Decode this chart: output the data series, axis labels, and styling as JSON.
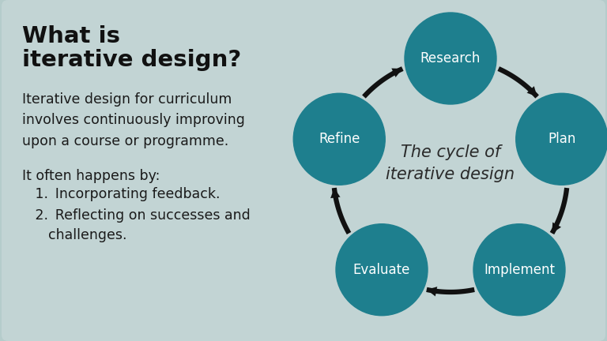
{
  "bg_color": "#b5cccb",
  "card_color": "#c2d4d4",
  "title_line1": "What is",
  "title_line2": "iterative design?",
  "title_fontsize": 21,
  "body_text1": "Iterative design for curriculum\ninvolves continuously improving\nupon a course or programme.",
  "body_text2": "It often happens by:",
  "list_item1": "Incorporating feedback.",
  "list_item2": "Reflecting on successes and\n      challenges.",
  "body_fontsize": 12.5,
  "circle_color": "#1e7f8e",
  "circle_text_color": "#ffffff",
  "circle_labels": [
    "Research",
    "Plan",
    "Implement",
    "Evaluate",
    "Refine"
  ],
  "cycle_title": "The cycle of\niterative design",
  "cycle_title_fontsize": 15,
  "arrow_color": "#111111",
  "angles_deg": [
    90,
    18,
    -54,
    -126,
    -198
  ]
}
